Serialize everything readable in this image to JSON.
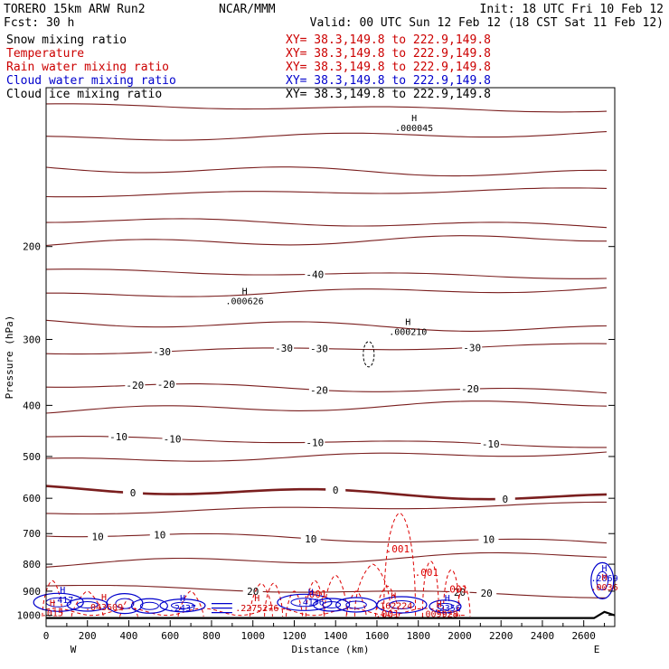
{
  "header": {
    "model": "TORERO  15km ARW   Run2",
    "org": "NCAR/MMM",
    "init": "Init: 18 UTC Fri 10 Feb 12",
    "fcst": "Fcst:   30 h",
    "valid": "Valid: 00 UTC Sun 12 Feb 12 (18 CST Sat 11 Feb 12)"
  },
  "fields": [
    {
      "name": "Snow mixing ratio",
      "range": "XY=  38.3,149.8 to 222.9,149.8",
      "color": "#000000",
      "xy_color": "#cc0000"
    },
    {
      "name": "Temperature",
      "range": "XY=  38.3,149.8 to 222.9,149.8",
      "color": "#cc0000",
      "xy_color": "#cc0000"
    },
    {
      "name": "Rain water mixing ratio",
      "range": "XY=  38.3,149.8 to 222.9,149.8",
      "color": "#cc0000",
      "xy_color": "#cc0000"
    },
    {
      "name": "Cloud water mixing ratio",
      "range": "XY=  38.3,149.8 to 222.9,149.8",
      "color": "#0000cc",
      "xy_color": "#0000cc"
    },
    {
      "name": "Cloud ice mixing ratio",
      "range": "XY=  38.3,149.8 to 222.9,149.8",
      "color": "#000000",
      "xy_color": "#000000"
    }
  ],
  "colors": {
    "temperature": "#7a1e1e",
    "rain": "#dd0000",
    "cloud_water": "#0000cc",
    "snow": "#000000",
    "terrain": "#000000"
  },
  "chart_data": {
    "type": "line",
    "xlabel": "Distance (km)",
    "ylabel": "Pressure (hPa)",
    "xlim": [
      0,
      2750
    ],
    "ylim": [
      1050,
      100
    ],
    "y_scale": "log",
    "x_ticks": [
      0,
      200,
      400,
      600,
      800,
      1000,
      1200,
      1400,
      1600,
      1800,
      2000,
      2200,
      2400,
      2600
    ],
    "y_ticks": [
      200,
      300,
      400,
      500,
      600,
      700,
      800,
      900,
      1000
    ],
    "x_end_labels": {
      "left": "W",
      "right": "E"
    },
    "isotherm_levels": [
      {
        "p": 108
      },
      {
        "p": 125
      },
      {
        "p": 142
      },
      {
        "p": 160
      },
      {
        "p": 178
      },
      {
        "p": 198
      },
      {
        "p": 222,
        "labels": [
          {
            "x": 1300,
            "t": "-40"
          }
        ]
      },
      {
        "p": 248
      },
      {
        "p": 278
      },
      {
        "p": 318,
        "labels": [
          {
            "x": 560,
            "t": "-30"
          },
          {
            "x": 1150,
            "t": "-30"
          },
          {
            "x": 1320,
            "t": "-30"
          },
          {
            "x": 2060,
            "t": "-30"
          }
        ]
      },
      {
        "p": 365,
        "labels": [
          {
            "x": 430,
            "t": "-20"
          },
          {
            "x": 580,
            "t": "-20"
          },
          {
            "x": 1320,
            "t": "-20"
          },
          {
            "x": 2050,
            "t": "-20"
          }
        ]
      },
      {
        "p": 410
      },
      {
        "p": 460,
        "labels": [
          {
            "x": 350,
            "t": "-10"
          },
          {
            "x": 610,
            "t": "-10"
          },
          {
            "x": 1300,
            "t": "-10"
          },
          {
            "x": 2150,
            "t": "-10"
          }
        ]
      },
      {
        "p": 510
      },
      {
        "p": 575,
        "labels": [
          {
            "x": 420,
            "t": "0"
          },
          {
            "x": 1400,
            "t": "0"
          },
          {
            "x": 2220,
            "t": "0"
          }
        ],
        "bold": true
      },
      {
        "p": 640
      },
      {
        "p": 700,
        "labels": [
          {
            "x": 250,
            "t": "10"
          },
          {
            "x": 550,
            "t": "10"
          },
          {
            "x": 1280,
            "t": "10"
          },
          {
            "x": 2140,
            "t": "10"
          }
        ]
      },
      {
        "p": 800
      },
      {
        "p": 880,
        "labels": [
          {
            "x": 1000,
            "t": "20"
          },
          {
            "x": 2130,
            "t": "20"
          },
          {
            "x": 2000,
            "t": "20"
          }
        ]
      }
    ],
    "maxima": [
      {
        "x": 960,
        "p": 255,
        "value": ".000626",
        "color": "#000000"
      },
      {
        "x": 1750,
        "p": 292,
        "value": ".000210",
        "color": "#000000"
      },
      {
        "x": 1780,
        "p": 120,
        "value": ".000045",
        "color": "#000000"
      },
      {
        "x": 80,
        "p": 940,
        "value": ".417",
        "color": "#0000cc"
      },
      {
        "x": 280,
        "p": 970,
        "value": ".043609",
        "color": "#cc0000"
      },
      {
        "x": 660,
        "p": 975,
        "value": ".2437",
        "color": "#0000cc"
      },
      {
        "x": 1020,
        "p": 975,
        "value": ".2275276",
        "color": "#cc0000"
      },
      {
        "x": 1280,
        "p": 950,
        "value": ".4176",
        "color": "#0000cc"
      },
      {
        "x": 1680,
        "p": 965,
        "value": ".162224",
        "color": "#cc0000"
      },
      {
        "x": 1940,
        "p": 975,
        "value": ".2356",
        "color": "#0000cc"
      },
      {
        "x": 1900,
        "p": 1000,
        "value": ".009928",
        "color": "#cc0000"
      },
      {
        "x": 2700,
        "p": 855,
        "value": ".2069",
        "color": "#0000cc"
      },
      {
        "x": 2700,
        "p": 890,
        "value": ".0036",
        "color": "#cc0000"
      },
      {
        "x": 30,
        "p": 995,
        "value": ".015",
        "color": "#cc0000"
      }
    ],
    "rain_labels": [
      {
        "x": 1700,
        "p": 760,
        "t": ".001"
      },
      {
        "x": 1840,
        "p": 842,
        "t": ".001"
      },
      {
        "x": 1980,
        "p": 905,
        "t": ".001"
      },
      {
        "x": 1300,
        "p": 925,
        "t": ".001"
      },
      {
        "x": 1650,
        "p": 1010,
        "t": ".001"
      }
    ]
  }
}
